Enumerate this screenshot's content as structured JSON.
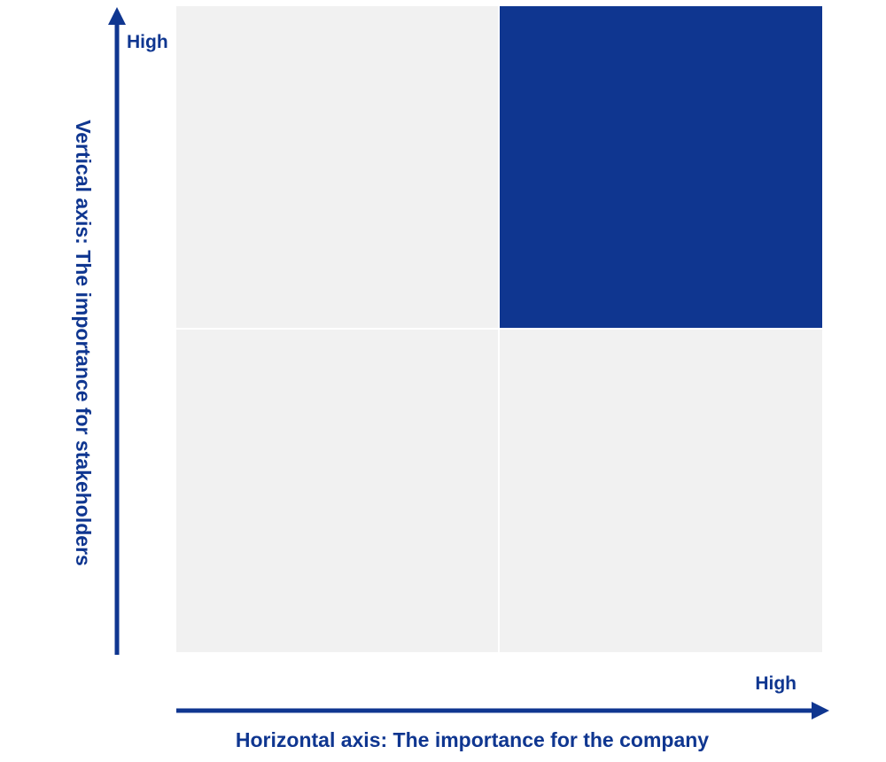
{
  "vertical_axis": {
    "label": "Vertical axis: The importance for stakeholders",
    "high": "High"
  },
  "horizontal_axis": {
    "label": "Horizontal axis: The importance for the company",
    "high": "High"
  }
}
